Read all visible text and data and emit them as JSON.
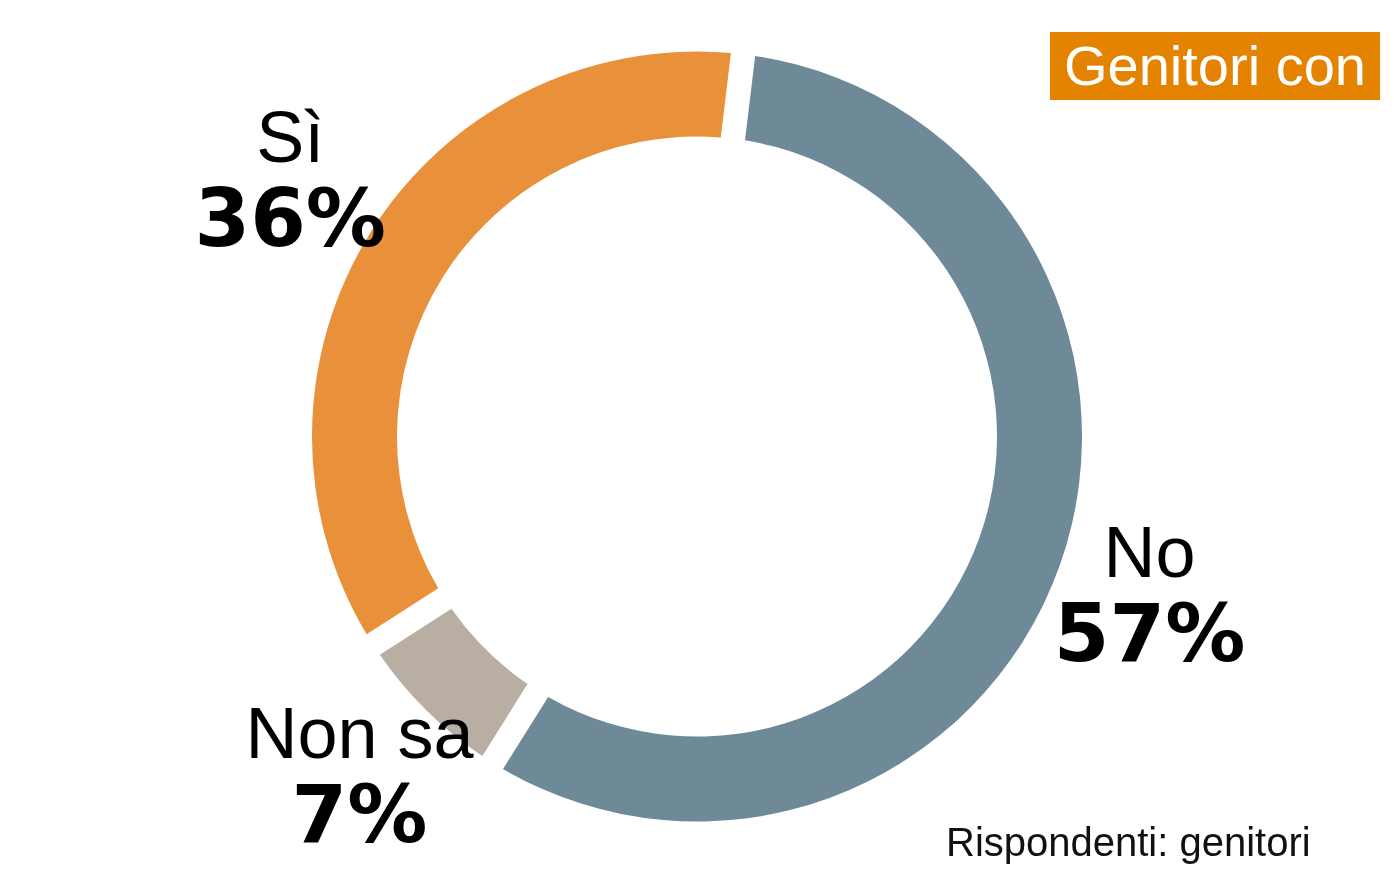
{
  "chart_data": {
    "type": "donut",
    "title": "Genitori con",
    "categories": [
      "No",
      "Non sa",
      "Sì"
    ],
    "values": [
      57,
      7,
      36
    ],
    "colors": [
      "#6e8a98",
      "#b8aea4",
      "#e8913a"
    ],
    "value_labels": [
      "57%",
      "7%",
      "36%"
    ],
    "annotations": [
      "Rispondenti: genitori"
    ],
    "legend": false
  }
}
